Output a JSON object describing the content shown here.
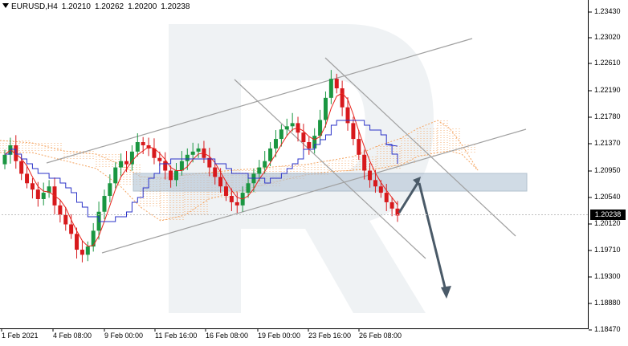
{
  "header": {
    "symbol": "EURUSD,H4",
    "open": "1.20210",
    "high": "1.20262",
    "low": "1.20200",
    "close": "1.20238"
  },
  "current_price": "1.20238",
  "y_axis": [
    "1.23430",
    "1.23020",
    "1.22610",
    "1.22190",
    "1.21780",
    "1.21370",
    "1.20950",
    "1.20540",
    "1.20120",
    "1.19710",
    "1.19300",
    "1.18880",
    "1.18470"
  ],
  "x_axis": [
    "1 Feb 2021",
    "4 Feb 08:00",
    "9 Feb 00:00",
    "11 Feb 16:00",
    "16 Feb 08:00",
    "19 Feb 00:00",
    "23 Feb 16:00",
    "26 Feb 08:00"
  ],
  "colors": {
    "bull": "#1a9641",
    "bear": "#d7191c",
    "tenkan": "#e8231c",
    "kijun": "#2b33c8",
    "cloud": "#f4a460",
    "trendline": "#a0a0a0",
    "arrow": "#4a5a68",
    "zone": "#b8c8d8"
  },
  "chart_data": {
    "type": "candlestick",
    "symbol": "EURUSD",
    "timeframe": "H4",
    "ylim": [
      1.1847,
      1.2364
    ],
    "y_ticks": [
      1.2343,
      1.2302,
      1.2261,
      1.2219,
      1.2178,
      1.2137,
      1.2095,
      1.2054,
      1.2012,
      1.1971,
      1.193,
      1.1888,
      1.1847
    ],
    "close_series": [
      1.212,
      1.2135,
      1.211,
      1.209,
      1.2075,
      1.2065,
      1.205,
      1.206,
      1.207,
      1.204,
      1.2025,
      1.201,
      1.1995,
      1.197,
      1.1962,
      1.1975,
      1.2,
      1.203,
      1.2055,
      1.2075,
      1.21,
      1.211,
      1.2105,
      1.2125,
      1.214,
      1.2135,
      1.213,
      1.2115,
      1.211,
      1.2095,
      1.208,
      1.2095,
      1.211,
      1.212,
      1.2125,
      1.213,
      1.2115,
      1.21,
      1.2085,
      1.207,
      1.2055,
      1.2045,
      1.204,
      1.206,
      1.2075,
      1.209,
      1.21,
      1.211,
      1.213,
      1.2145,
      1.216,
      1.2165,
      1.217,
      1.2155,
      1.214,
      1.213,
      1.215,
      1.2175,
      1.221,
      1.224,
      1.2225,
      1.2195,
      1.217,
      1.2145,
      1.212,
      1.2095,
      1.208,
      1.207,
      1.206,
      1.2045,
      1.2035,
      1.2024
    ],
    "resistance_zone": [
      1.2065,
      1.2092
    ],
    "forecast_up_target": 1.2087,
    "forecast_down_target": 1.1897,
    "legend": "none"
  }
}
